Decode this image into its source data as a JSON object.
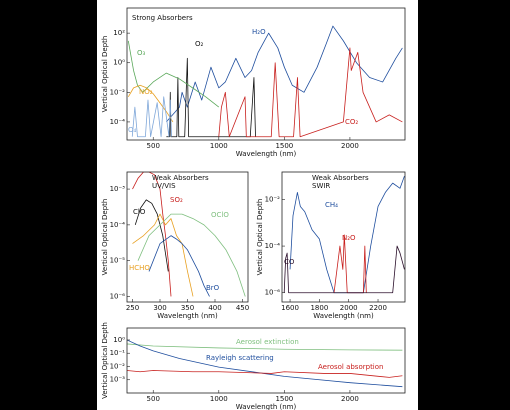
{
  "chart_data": [
    {
      "type": "line",
      "title": "Strong Absorbers",
      "x_label": "Wavelength (nm)",
      "y_label": "Vertical Optical Depth",
      "log_y": true,
      "xlim": [
        300,
        2420
      ],
      "xticks": [
        500,
        1000,
        1500,
        2000
      ],
      "ylim": [
        6e-06,
        5000
      ],
      "yticks": [
        {
          "value": 0.0001,
          "label": "10⁻⁴"
        },
        {
          "value": 0.01,
          "label": "10⁻²"
        },
        {
          "value": 1,
          "label": "10⁰"
        },
        {
          "value": 100,
          "label": "10²"
        }
      ],
      "series": [
        {
          "name": "H₂O",
          "color": "#1f4e9e",
          "x": [
            600,
            700,
            720,
            760,
            820,
            870,
            940,
            1000,
            1050,
            1130,
            1200,
            1250,
            1300,
            1380,
            1450,
            1500,
            1560,
            1650,
            1750,
            1820,
            1870,
            1950,
            2050,
            2150,
            2250,
            2350,
            2400
          ],
          "values": [
            0.0001,
            0.001,
            0.01,
            0.001,
            0.05,
            0.003,
            0.5,
            0.02,
            0.05,
            2,
            0.1,
            0.3,
            5,
            100,
            10,
            0.5,
            0.03,
            0.01,
            0.5,
            20,
            300,
            30,
            1,
            0.1,
            0.05,
            2,
            10
          ]
        },
        {
          "name": "O₂",
          "color": "#111111",
          "x": [
            600,
            625,
            630,
            635,
            680,
            688,
            695,
            740,
            760,
            770,
            1240,
            1268,
            1280
          ],
          "values": [
            1e-05,
            1e-05,
            0.01,
            1e-05,
            1e-05,
            0.1,
            1e-05,
            1e-05,
            2,
            1e-05,
            1e-05,
            0.1,
            1e-05
          ]
        },
        {
          "name": "O₃",
          "color": "#5aa85a",
          "x": [
            310,
            330,
            350,
            380,
            420,
            500,
            600,
            700,
            800,
            900,
            1000
          ],
          "values": [
            30,
            3,
            0.3,
            0.03,
            0.01,
            0.05,
            0.2,
            0.08,
            0.02,
            0.005,
            0.001
          ]
        },
        {
          "name": "NO₂",
          "color": "#e8a020",
          "x": [
            310,
            350,
            400,
            450,
            500,
            550,
            600,
            650
          ],
          "values": [
            0.005,
            0.02,
            0.03,
            0.02,
            0.008,
            0.002,
            0.0005,
            0.0001
          ]
        },
        {
          "name": "O₄",
          "color": "#7fa7d9",
          "x": [
            340,
            360,
            380,
            400,
            440,
            460,
            480,
            530,
            560,
            580,
            620,
            630,
            640
          ],
          "values": [
            1e-05,
            0.001,
            1e-05,
            1e-05,
            1e-05,
            0.003,
            1e-05,
            0.002,
            1e-05,
            0.005,
            1e-05,
            0.003,
            1e-05
          ]
        },
        {
          "name": "CO₂",
          "color": "#c8201e",
          "x": [
            1000,
            1020,
            1050,
            1080,
            1200,
            1210,
            1400,
            1430,
            1460,
            1570,
            1600,
            1620,
            1950,
            2000,
            2010,
            2060,
            2100,
            2200,
            2300,
            2400
          ],
          "values": [
            1e-05,
            0.001,
            0.01,
            1e-05,
            0.005,
            1e-05,
            1e-05,
            1,
            1e-05,
            1e-05,
            0.1,
            1e-05,
            0.0001,
            10,
            0.3,
            5,
            0.01,
            0.0001,
            0.0003,
            0.0001
          ]
        }
      ]
    },
    {
      "type": "line",
      "title": "Weak Absorbers",
      "subtitle": "UV/VIS",
      "x_label": "Wavelength (nm)",
      "y_label": "Vertical Optical Depth",
      "log_y": true,
      "xlim": [
        240,
        460
      ],
      "xticks": [
        250,
        300,
        350,
        400,
        450
      ],
      "ylim": [
        7e-07,
        0.003
      ],
      "yticks": [
        {
          "value": 1e-06,
          "label": "10⁻⁶"
        },
        {
          "value": 1e-05,
          "label": "10⁻⁵"
        },
        {
          "value": 0.0001,
          "label": "10⁻⁴"
        },
        {
          "value": 0.001,
          "label": "10⁻³"
        }
      ],
      "series": [
        {
          "name": "SO₂",
          "color": "#c8201e",
          "x": [
            250,
            260,
            270,
            280,
            290,
            300,
            305,
            310,
            315,
            320
          ],
          "values": [
            0.001,
            0.002,
            0.003,
            0.003,
            0.0025,
            0.001,
            0.0002,
            5e-05,
            1e-05,
            1e-06
          ]
        },
        {
          "name": "ClO",
          "color": "#111111",
          "x": [
            255,
            265,
            275,
            285,
            295,
            305,
            315
          ],
          "values": [
            0.0001,
            0.0003,
            0.0005,
            0.0004,
            0.0002,
            5e-05,
            5e-06
          ]
        },
        {
          "name": "OClO",
          "color": "#7fbf7f",
          "x": [
            260,
            280,
            300,
            320,
            340,
            360,
            380,
            400,
            420,
            440,
            455
          ],
          "values": [
            1e-05,
            5e-05,
            0.0001,
            0.0002,
            0.0002,
            0.00015,
            0.0001,
            5e-05,
            2e-05,
            5e-06,
            1e-06
          ]
        },
        {
          "name": "HCHO",
          "color": "#e8a020",
          "x": [
            250,
            270,
            290,
            300,
            310,
            320,
            330,
            340,
            350,
            360
          ],
          "values": [
            3e-05,
            5e-05,
            0.0001,
            0.0002,
            0.0001,
            0.00015,
            5e-05,
            3e-05,
            5e-06,
            1e-06
          ]
        },
        {
          "name": "BrO",
          "color": "#1f4e9e",
          "x": [
            280,
            300,
            320,
            330,
            340,
            350,
            360,
            370,
            380,
            390
          ],
          "values": [
            5e-06,
            3e-05,
            5e-05,
            4e-05,
            3e-05,
            2e-05,
            1e-05,
            5e-06,
            2e-06,
            1e-06
          ]
        }
      ]
    },
    {
      "type": "line",
      "title": "Weak Absorbers",
      "subtitle": "SWIR",
      "x_label": "Wavelength (nm)",
      "y_label": "Vertical Optical Depth",
      "log_y": true,
      "xlim": [
        1545,
        2384
      ],
      "xticks": [
        1600,
        1800,
        2000,
        2200
      ],
      "ylim": [
        4e-07,
        0.15
      ],
      "yticks": [
        {
          "value": 1e-06,
          "label": "10⁻⁶"
        },
        {
          "value": 0.0001,
          "label": "10⁻⁴"
        },
        {
          "value": 0.01,
          "label": "10⁻²"
        }
      ],
      "series": [
        {
          "name": "CH₄",
          "color": "#1f4e9e",
          "x": [
            1600,
            1620,
            1650,
            1670,
            1700,
            1750,
            1800,
            1850,
            1900,
            2100,
            2150,
            2200,
            2250,
            2300,
            2350,
            2380
          ],
          "values": [
            1e-05,
            0.002,
            0.02,
            0.005,
            0.003,
            0.0005,
            0.0002,
            1e-05,
            1e-06,
            1e-06,
            0.0001,
            0.005,
            0.02,
            0.05,
            0.03,
            0.1
          ]
        },
        {
          "name": "N₂O",
          "color": "#c8201e",
          "x": [
            1900,
            1940,
            1960,
            1970,
            1990,
            2100,
            2110,
            2120
          ],
          "values": [
            1e-06,
            0.0001,
            1e-05,
            0.0003,
            1e-06,
            1e-06,
            0.0001,
            1e-06
          ]
        },
        {
          "name": "CO",
          "color": "#2a0f2a",
          "x": [
            1560,
            1570,
            1580,
            1590,
            2300,
            2330,
            2350,
            2380
          ],
          "values": [
            1e-06,
            3e-05,
            5e-05,
            1e-06,
            1e-06,
            0.0001,
            5e-05,
            1e-05
          ]
        }
      ]
    },
    {
      "type": "line",
      "x_label": "Wavelength (nm)",
      "y_label": "Vertical Optical Depth",
      "log_y": true,
      "xlim": [
        300,
        2420
      ],
      "xticks": [
        500,
        1000,
        1500,
        2000
      ],
      "ylim": [
        0.0001,
        8
      ],
      "yticks": [
        {
          "value": 0.001,
          "label": "10⁻³"
        },
        {
          "value": 0.01,
          "label": "10⁻²"
        },
        {
          "value": 0.1,
          "label": "10⁻¹"
        },
        {
          "value": 1,
          "label": "10⁰"
        }
      ],
      "series": [
        {
          "name": "Aerosol extinction",
          "color": "#7fbf7f",
          "x": [
            300,
            500,
            1000,
            1500,
            2000,
            2400
          ],
          "values": [
            0.5,
            0.35,
            0.25,
            0.2,
            0.18,
            0.17
          ]
        },
        {
          "name": "Rayleigh scattering",
          "color": "#1f4e9e",
          "x": [
            300,
            400,
            500,
            700,
            1000,
            1500,
            2000,
            2400
          ],
          "values": [
            1,
            0.35,
            0.15,
            0.04,
            0.009,
            0.0018,
            0.0006,
            0.0003
          ]
        },
        {
          "name": "Aerosol absorption",
          "color": "#c8201e",
          "x": [
            300,
            400,
            500,
            800,
            1000,
            1400,
            1500,
            1800,
            2000,
            2300,
            2400
          ],
          "values": [
            0.005,
            0.004,
            0.005,
            0.004,
            0.004,
            0.003,
            0.004,
            0.003,
            0.003,
            0.0015,
            0.002
          ]
        }
      ]
    }
  ]
}
